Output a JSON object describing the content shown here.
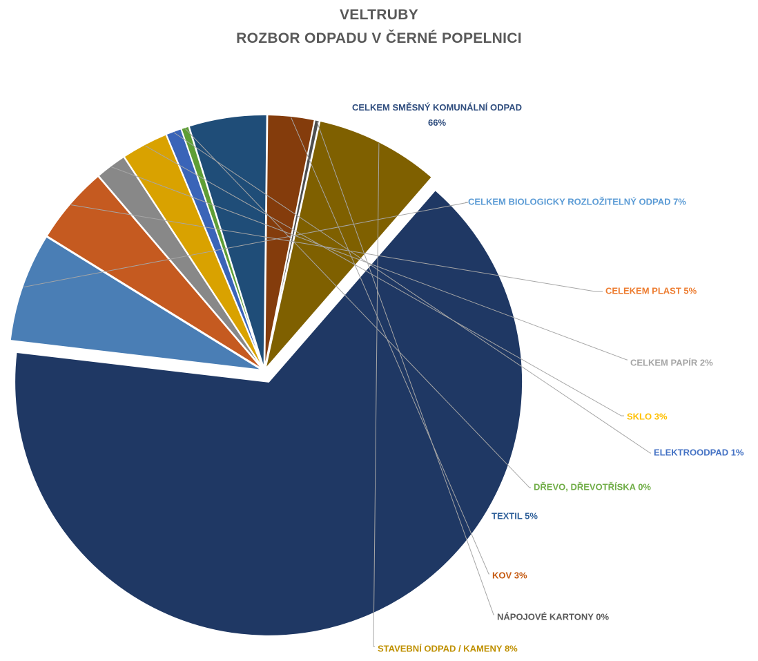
{
  "chart_data": {
    "type": "pie",
    "title": [
      "VELTRUBY",
      "ROZBOR ODPADU V ČERNÉ POPELNICI"
    ],
    "legend": "none (data labels on slices)",
    "slices": [
      {
        "category": "CELKEM SMĚSNÝ KOMUNÁLNÍ ODPAD",
        "value": 66,
        "label": "66%",
        "color": "#1f3864",
        "exploded": true
      },
      {
        "category": "CELKEM BIOLOGICKY ROZLOŽITELNÝ ODPAD",
        "value": 7,
        "label": "CELKEM BIOLOGICKY ROZLOŽITELNÝ ODPAD 7%",
        "color": "#4a7eb5",
        "exploded": false
      },
      {
        "category": "CELEKEM PLAST",
        "value": 5,
        "label": "CELEKEM PLAST 5%",
        "color": "#c55a20",
        "exploded": false
      },
      {
        "category": "CELKEM PAPÍR",
        "value": 2,
        "label": "CELKEM PAPÍR 2%",
        "color": "#888888",
        "exploded": false
      },
      {
        "category": "SKLO",
        "value": 3,
        "label": "SKLO 3%",
        "color": "#d9a200",
        "exploded": false
      },
      {
        "category": "ELEKTROODPAD",
        "value": 1,
        "label": "ELEKTROODPAD 1%",
        "color": "#3a64b8",
        "exploded": false
      },
      {
        "category": "DŘEVO, DŘEVOTŘÍSKA",
        "value": 0.5,
        "label": "DŘEVO, DŘEVOTŘÍSKA 0%",
        "color": "#5f9e35",
        "exploded": false
      },
      {
        "category": "TEXTIL",
        "value": 5,
        "label": "TEXTIL 5%",
        "color": "#1f4d78",
        "exploded": false
      },
      {
        "category": "KOV",
        "value": 3,
        "label": "KOV 3%",
        "color": "#843c0c",
        "exploded": false
      },
      {
        "category": "NÁPOJOVÉ KARTONY",
        "value": 0.3,
        "label": "NÁPOJOVÉ KARTONY 0%",
        "color": "#4f4f4f",
        "exploded": false
      },
      {
        "category": "STAVEBNÍ ODPAD / KAMENY",
        "value": 8,
        "label": "STAVEBNÍ ODPAD / KAMENY 8%",
        "color": "#7f6000",
        "exploded": false
      }
    ],
    "label_colors": {
      "CELKEM SMĚSNÝ KOMUNÁLNÍ ODPAD": "#2f4d7e",
      "CELKEM BIOLOGICKY ROZLOŽITELNÝ ODPAD": "#5b9bd5",
      "CELEKEM PLAST": "#ed7d31",
      "CELKEM PAPÍR": "#a5a5a5",
      "SKLO": "#ffc000",
      "ELEKTROODPAD": "#4472c4",
      "DŘEVO, DŘEVOTŘÍSKA": "#70ad47",
      "TEXTIL": "#2e5f99",
      "KOV": "#c55a11",
      "NÁPOJOVÉ KARTONY": "#595959",
      "STAVEBNÍ ODPAD / KAMENY": "#bf9000"
    },
    "leader_line_color": "#a6a6a6"
  }
}
